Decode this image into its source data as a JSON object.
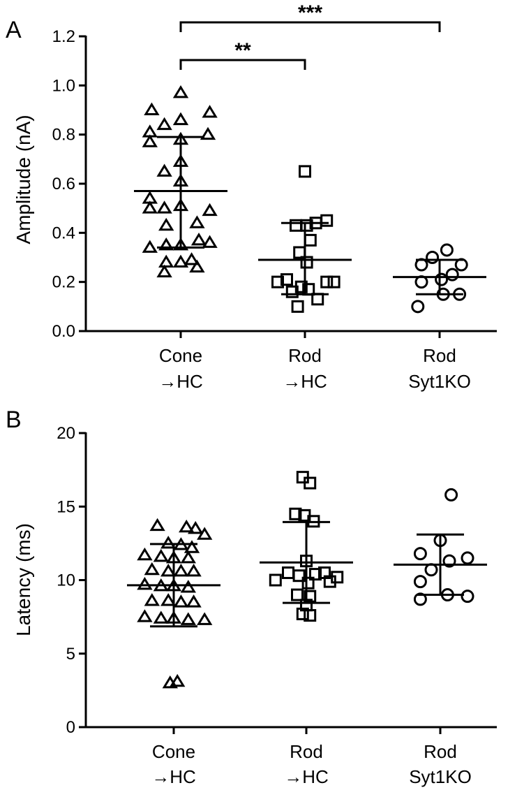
{
  "chart_data": [
    {
      "panel": "A",
      "type": "scatter",
      "ylabel": "Amplitude (nA)",
      "ylim": [
        0.0,
        1.2
      ],
      "yticks": [
        "0.0",
        "0.2",
        "0.4",
        "0.6",
        "0.8",
        "1.0",
        "1.2"
      ],
      "categories": [
        {
          "line1": "Cone",
          "line2": "→HC"
        },
        {
          "line1": "Rod",
          "line2": "→HC"
        },
        {
          "line1": "Rod",
          "line2": "Syt1KO"
        }
      ],
      "series": [
        {
          "marker": "triangle",
          "points": [
            {
              "y": 0.97,
              "o": 0.0
            },
            {
              "y": 0.9,
              "o": -0.8
            },
            {
              "y": 0.89,
              "o": 0.8
            },
            {
              "y": 0.86,
              "o": 0.0
            },
            {
              "y": 0.84,
              "o": -0.45
            },
            {
              "y": 0.81,
              "o": -0.85
            },
            {
              "y": 0.8,
              "o": 0.75
            },
            {
              "y": 0.77,
              "o": -0.85
            },
            {
              "y": 0.78,
              "o": 0.0
            },
            {
              "y": 0.69,
              "o": 0.0
            },
            {
              "y": 0.65,
              "o": -0.45
            },
            {
              "y": 0.61,
              "o": 0.0
            },
            {
              "y": 0.54,
              "o": -0.85
            },
            {
              "y": 0.5,
              "o": -0.85
            },
            {
              "y": 0.51,
              "o": 0.0
            },
            {
              "y": 0.49,
              "o": 0.8
            },
            {
              "y": 0.5,
              "o": -0.45
            },
            {
              "y": 0.44,
              "o": 0.45
            },
            {
              "y": 0.43,
              "o": -0.4
            },
            {
              "y": 0.34,
              "o": -0.85
            },
            {
              "y": 0.35,
              "o": -0.4
            },
            {
              "y": 0.35,
              "o": 0.0
            },
            {
              "y": 0.37,
              "o": 0.5
            },
            {
              "y": 0.36,
              "o": 0.8
            },
            {
              "y": 0.28,
              "o": -0.4
            },
            {
              "y": 0.29,
              "o": 0.3
            },
            {
              "y": 0.26,
              "o": 0.45
            },
            {
              "y": 0.24,
              "o": -0.45
            },
            {
              "y": 0.28,
              "o": 0.0
            }
          ],
          "mean": 0.57,
          "sd": [
            0.34,
            0.79
          ]
        },
        {
          "marker": "square",
          "points": [
            {
              "y": 0.65,
              "o": 0.0
            },
            {
              "y": 0.45,
              "o": 0.6
            },
            {
              "y": 0.44,
              "o": 0.3
            },
            {
              "y": 0.43,
              "o": -0.25
            },
            {
              "y": 0.43,
              "o": 0.05
            },
            {
              "y": 0.37,
              "o": 0.15
            },
            {
              "y": 0.32,
              "o": -0.15
            },
            {
              "y": 0.28,
              "o": 0.05
            },
            {
              "y": 0.21,
              "o": -0.5
            },
            {
              "y": 0.2,
              "o": -0.75
            },
            {
              "y": 0.2,
              "o": 0.6
            },
            {
              "y": 0.2,
              "o": 0.8
            },
            {
              "y": 0.18,
              "o": -0.1
            },
            {
              "y": 0.17,
              "o": 0.1
            },
            {
              "y": 0.16,
              "o": -0.35
            },
            {
              "y": 0.13,
              "o": 0.35
            },
            {
              "y": 0.1,
              "o": -0.2
            }
          ],
          "mean": 0.29,
          "sd": [
            0.15,
            0.44
          ]
        },
        {
          "marker": "circle",
          "points": [
            {
              "y": 0.33,
              "o": 0.2
            },
            {
              "y": 0.3,
              "o": -0.2
            },
            {
              "y": 0.27,
              "o": 0.6
            },
            {
              "y": 0.27,
              "o": -0.5
            },
            {
              "y": 0.23,
              "o": 0.35
            },
            {
              "y": 0.21,
              "o": 0.05
            },
            {
              "y": 0.2,
              "o": -0.5
            },
            {
              "y": 0.15,
              "o": 0.55
            },
            {
              "y": 0.15,
              "o": 0.1
            },
            {
              "y": 0.1,
              "o": -0.6
            }
          ],
          "mean": 0.22,
          "sd": [
            0.15,
            0.29
          ]
        }
      ],
      "significance": [
        {
          "from": 0,
          "to": 1,
          "label": "**",
          "level": 0
        },
        {
          "from": 0,
          "to": 2,
          "label": "***",
          "level": 1
        }
      ]
    },
    {
      "panel": "B",
      "type": "scatter",
      "ylabel": "Latency (ms)",
      "ylim": [
        0,
        20
      ],
      "yticks": [
        "0",
        "5",
        "10",
        "15",
        "20"
      ],
      "categories": [
        {
          "line1": "Cone",
          "line2": "→HC"
        },
        {
          "line1": "Rod",
          "line2": "→HC"
        },
        {
          "line1": "Rod",
          "line2": "Syt1KO"
        }
      ],
      "series": [
        {
          "marker": "triangle",
          "points": [
            {
              "y": 13.7,
              "o": -0.45
            },
            {
              "y": 13.6,
              "o": 0.35
            },
            {
              "y": 13.5,
              "o": 0.6
            },
            {
              "y": 13.1,
              "o": 0.85
            },
            {
              "y": 12.5,
              "o": -0.15
            },
            {
              "y": 12.4,
              "o": 0.2
            },
            {
              "y": 12.2,
              "o": 0.5
            },
            {
              "y": 11.7,
              "o": -0.8
            },
            {
              "y": 11.6,
              "o": -0.35
            },
            {
              "y": 11.5,
              "o": 0.0
            },
            {
              "y": 11.5,
              "o": 0.4
            },
            {
              "y": 10.7,
              "o": -0.6
            },
            {
              "y": 10.6,
              "o": -0.15
            },
            {
              "y": 10.6,
              "o": 0.2
            },
            {
              "y": 10.6,
              "o": 0.55
            },
            {
              "y": 9.7,
              "o": -0.8
            },
            {
              "y": 9.6,
              "o": -0.35
            },
            {
              "y": 9.6,
              "o": 0.0
            },
            {
              "y": 9.5,
              "o": 0.4
            },
            {
              "y": 8.6,
              "o": -0.6
            },
            {
              "y": 8.6,
              "o": -0.15
            },
            {
              "y": 8.5,
              "o": 0.2
            },
            {
              "y": 8.5,
              "o": 0.55
            },
            {
              "y": 7.5,
              "o": -0.8
            },
            {
              "y": 7.4,
              "o": -0.35
            },
            {
              "y": 7.4,
              "o": 0.0
            },
            {
              "y": 7.3,
              "o": 0.4
            },
            {
              "y": 7.3,
              "o": 0.85
            },
            {
              "y": 3.1,
              "o": 0.1
            },
            {
              "y": 3.0,
              "o": -0.1
            }
          ],
          "mean": 9.65,
          "sd": [
            6.85,
            12.45
          ]
        },
        {
          "marker": "square",
          "points": [
            {
              "y": 17.0,
              "o": -0.1
            },
            {
              "y": 16.6,
              "o": 0.1
            },
            {
              "y": 14.5,
              "o": -0.3
            },
            {
              "y": 14.4,
              "o": -0.05
            },
            {
              "y": 14.0,
              "o": 0.2
            },
            {
              "y": 11.3,
              "o": 0.0
            },
            {
              "y": 10.5,
              "o": -0.5
            },
            {
              "y": 10.5,
              "o": 0.5
            },
            {
              "y": 10.4,
              "o": 0.25
            },
            {
              "y": 10.3,
              "o": -0.2
            },
            {
              "y": 10.2,
              "o": 0.85
            },
            {
              "y": 10.0,
              "o": -0.85
            },
            {
              "y": 9.9,
              "o": 0.65
            },
            {
              "y": 9.8,
              "o": 0.05
            },
            {
              "y": 9.0,
              "o": -0.25
            },
            {
              "y": 8.9,
              "o": 0.1
            },
            {
              "y": 8.3,
              "o": 0.0
            },
            {
              "y": 7.7,
              "o": -0.1
            },
            {
              "y": 7.6,
              "o": 0.1
            }
          ],
          "mean": 11.2,
          "sd": [
            8.45,
            13.95
          ]
        },
        {
          "marker": "circle",
          "points": [
            {
              "y": 15.8,
              "o": 0.3
            },
            {
              "y": 12.7,
              "o": 0.0
            },
            {
              "y": 11.8,
              "o": -0.55
            },
            {
              "y": 11.5,
              "o": 0.75
            },
            {
              "y": 11.3,
              "o": 0.25
            },
            {
              "y": 10.7,
              "o": -0.25
            },
            {
              "y": 9.9,
              "o": -0.55
            },
            {
              "y": 9.0,
              "o": 0.2
            },
            {
              "y": 8.9,
              "o": 0.75
            },
            {
              "y": 8.7,
              "o": -0.55
            }
          ],
          "mean": 11.05,
          "sd": [
            9.0,
            13.1
          ]
        }
      ],
      "significance": []
    }
  ]
}
